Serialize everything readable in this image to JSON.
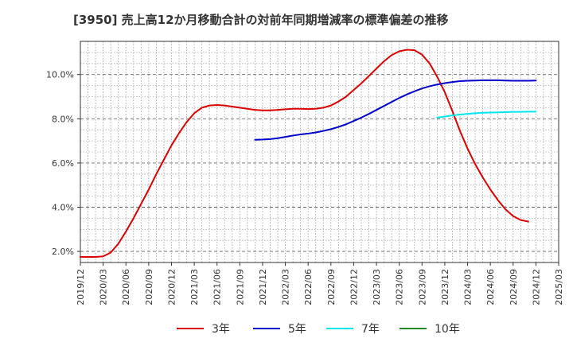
{
  "chart_data": {
    "type": "line",
    "title": "[3950]  売上高12か月移動合計の対前年同期増減率の標準偏差の推移",
    "xlabel": "",
    "ylabel": "",
    "y_axis": {
      "min": 1.5,
      "max": 11.5,
      "tick_values": [
        2,
        4,
        6,
        8,
        10
      ],
      "tick_labels": [
        "2.0%",
        "4.0%",
        "6.0%",
        "8.0%",
        "10.0%"
      ]
    },
    "x_axis": {
      "tick_labels": [
        "2019/12",
        "2020/03",
        "2020/06",
        "2020/09",
        "2020/12",
        "2021/03",
        "2021/06",
        "2021/09",
        "2021/12",
        "2022/03",
        "2022/06",
        "2022/09",
        "2022/12",
        "2023/03",
        "2023/06",
        "2023/09",
        "2023/12",
        "2024/03",
        "2024/06",
        "2024/09",
        "2024/12",
        "2025/03"
      ]
    },
    "grid": true,
    "legend_position": "bottom",
    "series": [
      {
        "name": "3年",
        "color": "#dd0000",
        "points": [
          [
            "2019/12",
            1.75
          ],
          [
            "2020/01",
            1.75
          ],
          [
            "2020/02",
            1.75
          ],
          [
            "2020/03",
            1.78
          ],
          [
            "2020/04",
            1.95
          ],
          [
            "2020/05",
            2.35
          ],
          [
            "2020/06",
            2.9
          ],
          [
            "2020/07",
            3.5
          ],
          [
            "2020/08",
            4.15
          ],
          [
            "2020/09",
            4.8
          ],
          [
            "2020/10",
            5.5
          ],
          [
            "2020/11",
            6.15
          ],
          [
            "2020/12",
            6.8
          ],
          [
            "2021/01",
            7.35
          ],
          [
            "2021/02",
            7.85
          ],
          [
            "2021/03",
            8.25
          ],
          [
            "2021/04",
            8.5
          ],
          [
            "2021/05",
            8.6
          ],
          [
            "2021/06",
            8.62
          ],
          [
            "2021/07",
            8.6
          ],
          [
            "2021/08",
            8.55
          ],
          [
            "2021/09",
            8.5
          ],
          [
            "2021/10",
            8.45
          ],
          [
            "2021/11",
            8.4
          ],
          [
            "2021/12",
            8.38
          ],
          [
            "2022/01",
            8.38
          ],
          [
            "2022/02",
            8.4
          ],
          [
            "2022/03",
            8.43
          ],
          [
            "2022/04",
            8.45
          ],
          [
            "2022/05",
            8.45
          ],
          [
            "2022/06",
            8.44
          ],
          [
            "2022/07",
            8.45
          ],
          [
            "2022/08",
            8.5
          ],
          [
            "2022/09",
            8.6
          ],
          [
            "2022/10",
            8.78
          ],
          [
            "2022/11",
            9.0
          ],
          [
            "2022/12",
            9.3
          ],
          [
            "2023/01",
            9.6
          ],
          [
            "2023/02",
            9.93
          ],
          [
            "2023/03",
            10.27
          ],
          [
            "2023/04",
            10.6
          ],
          [
            "2023/05",
            10.88
          ],
          [
            "2023/06",
            11.05
          ],
          [
            "2023/07",
            11.12
          ],
          [
            "2023/08",
            11.1
          ],
          [
            "2023/09",
            10.9
          ],
          [
            "2023/10",
            10.5
          ],
          [
            "2023/11",
            9.9
          ],
          [
            "2023/12",
            9.2
          ],
          [
            "2024/01",
            8.35
          ],
          [
            "2024/02",
            7.45
          ],
          [
            "2024/03",
            6.65
          ],
          [
            "2024/04",
            5.95
          ],
          [
            "2024/05",
            5.35
          ],
          [
            "2024/06",
            4.8
          ],
          [
            "2024/07",
            4.32
          ],
          [
            "2024/08",
            3.9
          ],
          [
            "2024/09",
            3.6
          ],
          [
            "2024/10",
            3.42
          ],
          [
            "2024/11",
            3.35
          ]
        ]
      },
      {
        "name": "5年",
        "color": "#0000cc",
        "points": [
          [
            "2021/11",
            7.05
          ],
          [
            "2021/12",
            7.06
          ],
          [
            "2022/01",
            7.08
          ],
          [
            "2022/02",
            7.12
          ],
          [
            "2022/03",
            7.18
          ],
          [
            "2022/04",
            7.24
          ],
          [
            "2022/05",
            7.29
          ],
          [
            "2022/06",
            7.33
          ],
          [
            "2022/07",
            7.38
          ],
          [
            "2022/08",
            7.45
          ],
          [
            "2022/09",
            7.53
          ],
          [
            "2022/10",
            7.63
          ],
          [
            "2022/11",
            7.75
          ],
          [
            "2022/12",
            7.9
          ],
          [
            "2023/01",
            8.05
          ],
          [
            "2023/02",
            8.22
          ],
          [
            "2023/03",
            8.4
          ],
          [
            "2023/04",
            8.58
          ],
          [
            "2023/05",
            8.76
          ],
          [
            "2023/06",
            8.94
          ],
          [
            "2023/07",
            9.1
          ],
          [
            "2023/08",
            9.24
          ],
          [
            "2023/09",
            9.37
          ],
          [
            "2023/10",
            9.47
          ],
          [
            "2023/11",
            9.55
          ],
          [
            "2023/12",
            9.61
          ],
          [
            "2024/01",
            9.66
          ],
          [
            "2024/02",
            9.7
          ],
          [
            "2024/03",
            9.72
          ],
          [
            "2024/04",
            9.73
          ],
          [
            "2024/05",
            9.74
          ],
          [
            "2024/06",
            9.74
          ],
          [
            "2024/07",
            9.74
          ],
          [
            "2024/08",
            9.73
          ],
          [
            "2024/09",
            9.72
          ],
          [
            "2024/10",
            9.72
          ],
          [
            "2024/11",
            9.72
          ],
          [
            "2024/12",
            9.73
          ]
        ]
      },
      {
        "name": "7年",
        "color": "#00e5ee",
        "points": [
          [
            "2023/11",
            8.05
          ],
          [
            "2023/12",
            8.1
          ],
          [
            "2024/01",
            8.15
          ],
          [
            "2024/02",
            8.19
          ],
          [
            "2024/03",
            8.22
          ],
          [
            "2024/04",
            8.25
          ],
          [
            "2024/05",
            8.27
          ],
          [
            "2024/06",
            8.28
          ],
          [
            "2024/07",
            8.29
          ],
          [
            "2024/08",
            8.3
          ],
          [
            "2024/09",
            8.31
          ],
          [
            "2024/10",
            8.31
          ],
          [
            "2024/11",
            8.32
          ],
          [
            "2024/12",
            8.32
          ]
        ]
      },
      {
        "name": "10年",
        "color": "#228b22",
        "points": []
      }
    ]
  }
}
